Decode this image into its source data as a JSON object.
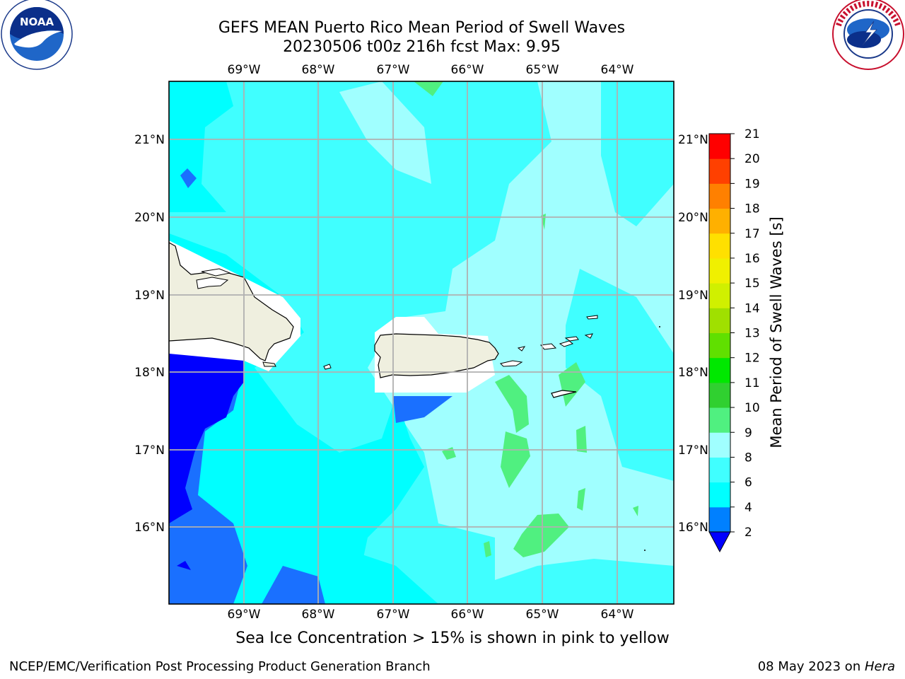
{
  "title_line1": "GEFS MEAN Puerto Rico Mean Period of Swell Waves",
  "title_line2": "20230506 t00z 216h fcst   Max: 9.95",
  "note": "Sea Ice Concentration > 15% is shown in pink to yellow",
  "footer_left": "NCEP/EMC/Verification Post Processing Product Generation Branch",
  "footer_date": "08 May 2023 on ",
  "footer_host": "Hera",
  "logo_left": "NOAA",
  "logo_left_ring": "NATIONAL OCEANIC AND ATMOSPHERIC ADMINISTRATION · U.S. DEPARTMENT OF COMMERCE",
  "logo_right_ring": "NATIONAL WEATHER SERVICE",
  "map": {
    "lon_ticks": [
      "69°W",
      "68°W",
      "67°W",
      "66°W",
      "65°W",
      "64°W"
    ],
    "lat_ticks": [
      "21°N",
      "20°N",
      "19°N",
      "18°N",
      "17°N",
      "16°N"
    ]
  },
  "colorbar": {
    "label": "Mean Period of Swell Waves [s]",
    "ticks": [
      "2",
      "4",
      "6",
      "8",
      "9",
      "10",
      "11",
      "12",
      "13",
      "14",
      "15",
      "16",
      "17",
      "18",
      "19",
      "20",
      "21"
    ],
    "colors": [
      "#0000ff",
      "#0080ff",
      "#00ffff",
      "#40ffff",
      "#a0ffff",
      "#50f080",
      "#30d030",
      "#00e800",
      "#60e000",
      "#a0e000",
      "#d0f000",
      "#f0f000",
      "#ffe000",
      "#ffb000",
      "#ff8000",
      "#ff4000",
      "#ff0000"
    ],
    "under_color": "#0000ff"
  }
}
